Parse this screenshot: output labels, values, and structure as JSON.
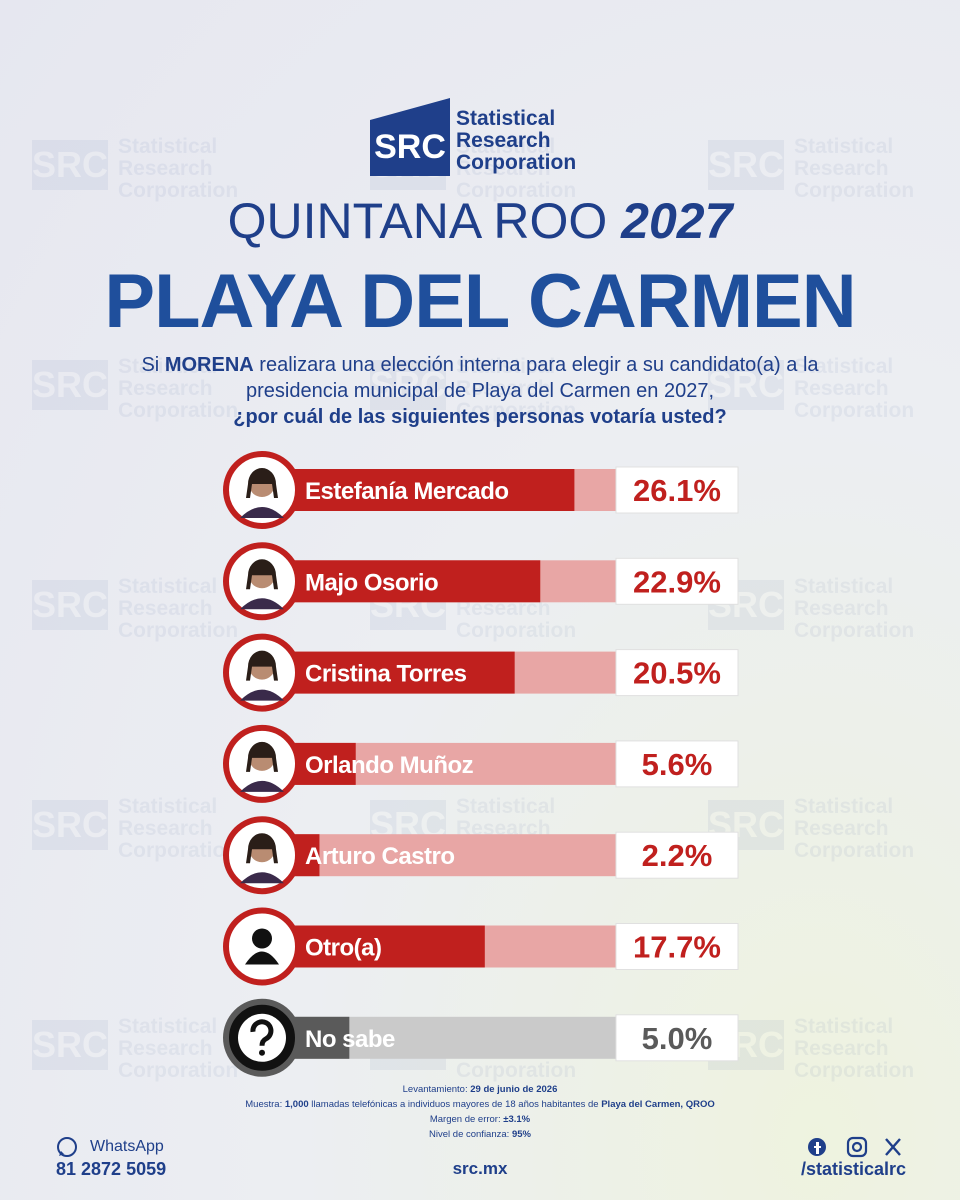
{
  "logo": {
    "mark": "SRC",
    "line1": "Statistical",
    "line2": "Research",
    "line3": "Corporation"
  },
  "heading": {
    "region": "QUINTANA ROO",
    "year": "2027",
    "city": "PLAYA DEL CARMEN"
  },
  "question": {
    "intro": [
      "Si",
      "MORENA",
      "realizara una elección interna para elegir a su candidato(a) a la presidencia municipal de Playa del Carmen en 2027,"
    ],
    "ask": "¿por cuál de las siguientes personas votaría usted?"
  },
  "chart_data": {
    "type": "hbar",
    "categories": [
      "Estefanía Mercado",
      "Majo Osorio",
      "Cristina Torres",
      "Orlando Muñoz",
      "Arturo Castro",
      "Otro(a)",
      "No sabe"
    ],
    "values": [
      26.1,
      22.9,
      20.5,
      5.6,
      2.2,
      17.7,
      5.0
    ],
    "value_labels": [
      "26.1%",
      "22.9%",
      "20.5%",
      "5.6%",
      "2.2%",
      "17.7%",
      "5.0%"
    ],
    "colors": [
      "#c0201e",
      "#c0201e",
      "#c0201e",
      "#c0201e",
      "#c0201e",
      "#c0201e",
      "#5a5a5a"
    ],
    "track_colors": [
      "#e8a6a5",
      "#e8a6a5",
      "#e8a6a5",
      "#e8a6a5",
      "#e8a6a5",
      "#e8a6a5",
      "#cacaca"
    ],
    "xlim": [
      0,
      30
    ]
  },
  "notes": [
    [
      "Levantamiento:",
      "29 de junio de 2026"
    ],
    [
      "Muestra:",
      "1,000",
      "llamadas telefónicas a individuos mayores de 18 años habitantes de",
      "Playa del Carmen, QROO"
    ],
    [
      "Margen de error:",
      "±3.1%"
    ],
    [
      "Nivel de confianza:",
      "95%"
    ]
  ],
  "footer": {
    "whatsapp": "WhatsApp",
    "phone": "81 2872 5059",
    "site": "src.mx",
    "handle": "/statisticalrc"
  }
}
